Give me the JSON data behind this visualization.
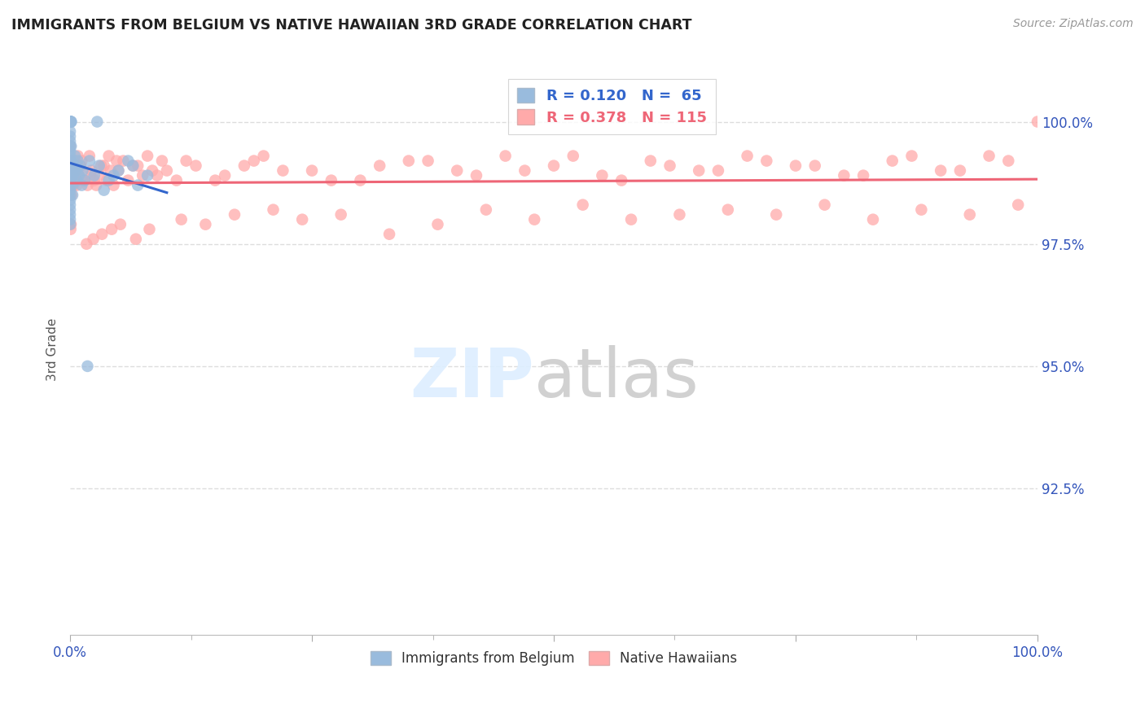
{
  "title": "IMMIGRANTS FROM BELGIUM VS NATIVE HAWAIIAN 3RD GRADE CORRELATION CHART",
  "source": "Source: ZipAtlas.com",
  "ylabel": "3rd Grade",
  "xlim": [
    0.0,
    100.0
  ],
  "ylim": [
    89.5,
    101.2
  ],
  "legend_r1": "R = 0.120",
  "legend_n1": "N =  65",
  "legend_r2": "R = 0.378",
  "legend_n2": "N = 115",
  "blue_scatter_color": "#99BBDD",
  "pink_scatter_color": "#FFAAAA",
  "blue_line_color": "#3366CC",
  "pink_line_color": "#EE6677",
  "axis_label_color": "#3355BB",
  "title_color": "#222222",
  "grid_color": "#DDDDDD",
  "belgium_x": [
    0.0,
    0.0,
    0.0,
    0.0,
    0.0,
    0.0,
    0.0,
    0.0,
    0.0,
    0.0,
    0.0,
    0.0,
    0.0,
    0.0,
    0.0,
    0.0,
    0.0,
    0.0,
    0.0,
    0.0,
    0.0,
    0.0,
    0.0,
    0.0,
    0.0,
    0.0,
    0.0,
    0.0,
    0.0,
    0.0,
    0.1,
    0.1,
    0.1,
    0.2,
    0.2,
    0.3,
    0.4,
    0.5,
    0.6,
    0.7,
    0.8,
    0.9,
    1.0,
    1.2,
    1.5,
    2.0,
    2.5,
    3.0,
    4.0,
    5.0,
    6.0,
    7.0,
    8.0,
    1.8,
    2.8,
    0.15,
    0.25,
    3.5,
    4.5,
    6.5,
    1.3,
    0.05,
    0.08,
    0.12,
    0.4
  ],
  "belgium_y": [
    100.0,
    100.0,
    100.0,
    100.0,
    100.0,
    100.0,
    100.0,
    100.0,
    100.0,
    100.0,
    99.8,
    99.7,
    99.6,
    99.5,
    99.4,
    99.3,
    99.2,
    99.1,
    99.0,
    98.9,
    98.8,
    98.7,
    98.6,
    98.5,
    98.4,
    98.3,
    98.2,
    98.1,
    98.0,
    97.9,
    99.5,
    99.2,
    98.8,
    99.0,
    98.7,
    98.9,
    99.1,
    99.3,
    99.0,
    98.8,
    99.2,
    98.9,
    99.1,
    98.7,
    98.8,
    99.2,
    98.9,
    99.1,
    98.8,
    99.0,
    99.2,
    98.7,
    98.9,
    95.0,
    100.0,
    99.0,
    98.5,
    98.6,
    98.9,
    99.1,
    99.0,
    100.0,
    100.0,
    100.0,
    99.1
  ],
  "hawaii_x": [
    0.0,
    0.0,
    0.1,
    0.1,
    0.2,
    0.3,
    0.4,
    0.5,
    0.6,
    0.7,
    0.8,
    0.9,
    1.0,
    1.2,
    1.5,
    1.8,
    2.0,
    2.5,
    3.0,
    3.5,
    4.0,
    4.5,
    5.0,
    5.5,
    6.0,
    7.0,
    8.0,
    9.0,
    10.0,
    12.0,
    15.0,
    18.0,
    20.0,
    25.0,
    30.0,
    35.0,
    40.0,
    45.0,
    50.0,
    55.0,
    60.0,
    65.0,
    70.0,
    75.0,
    80.0,
    85.0,
    90.0,
    95.0,
    100.0,
    0.15,
    0.25,
    0.35,
    1.1,
    1.3,
    2.1,
    2.7,
    3.2,
    3.8,
    4.2,
    5.2,
    6.5,
    7.5,
    8.5,
    11.0,
    13.0,
    16.0,
    19.0,
    22.0,
    27.0,
    32.0,
    37.0,
    42.0,
    47.0,
    52.0,
    57.0,
    62.0,
    67.0,
    72.0,
    77.0,
    82.0,
    87.0,
    92.0,
    97.0,
    0.05,
    1.7,
    2.4,
    3.3,
    4.3,
    6.8,
    8.2,
    11.5,
    14.0,
    17.0,
    21.0,
    24.0,
    28.0,
    33.0,
    38.0,
    43.0,
    48.0,
    53.0,
    58.0,
    63.0,
    68.0,
    73.0,
    78.0,
    83.0,
    88.0,
    93.0,
    98.0,
    0.08,
    0.45,
    2.2,
    4.8,
    9.5
  ],
  "hawaii_y": [
    99.5,
    99.2,
    99.1,
    98.7,
    98.9,
    99.0,
    99.2,
    98.8,
    99.1,
    98.7,
    99.3,
    98.9,
    99.0,
    99.2,
    98.8,
    98.7,
    99.3,
    98.8,
    98.9,
    99.1,
    99.3,
    98.7,
    99.0,
    99.2,
    98.8,
    99.1,
    99.3,
    98.9,
    99.0,
    99.2,
    98.8,
    99.1,
    99.3,
    99.0,
    98.8,
    99.2,
    99.0,
    99.3,
    99.1,
    98.9,
    99.2,
    99.0,
    99.3,
    99.1,
    98.9,
    99.2,
    99.0,
    99.3,
    100.0,
    98.5,
    98.8,
    98.7,
    99.1,
    98.8,
    98.9,
    98.7,
    99.1,
    98.8,
    99.0,
    97.9,
    99.1,
    98.9,
    99.0,
    98.8,
    99.1,
    98.9,
    99.2,
    99.0,
    98.8,
    99.1,
    99.2,
    98.9,
    99.0,
    99.3,
    98.8,
    99.1,
    99.0,
    99.2,
    99.1,
    98.9,
    99.3,
    99.0,
    99.2,
    97.8,
    97.5,
    97.6,
    97.7,
    97.8,
    97.6,
    97.8,
    98.0,
    97.9,
    98.1,
    98.2,
    98.0,
    98.1,
    97.7,
    97.9,
    98.2,
    98.0,
    98.3,
    98.0,
    98.1,
    98.2,
    98.1,
    98.3,
    98.0,
    98.2,
    98.1,
    98.3,
    97.9,
    98.9,
    99.0,
    99.2,
    99.2
  ]
}
